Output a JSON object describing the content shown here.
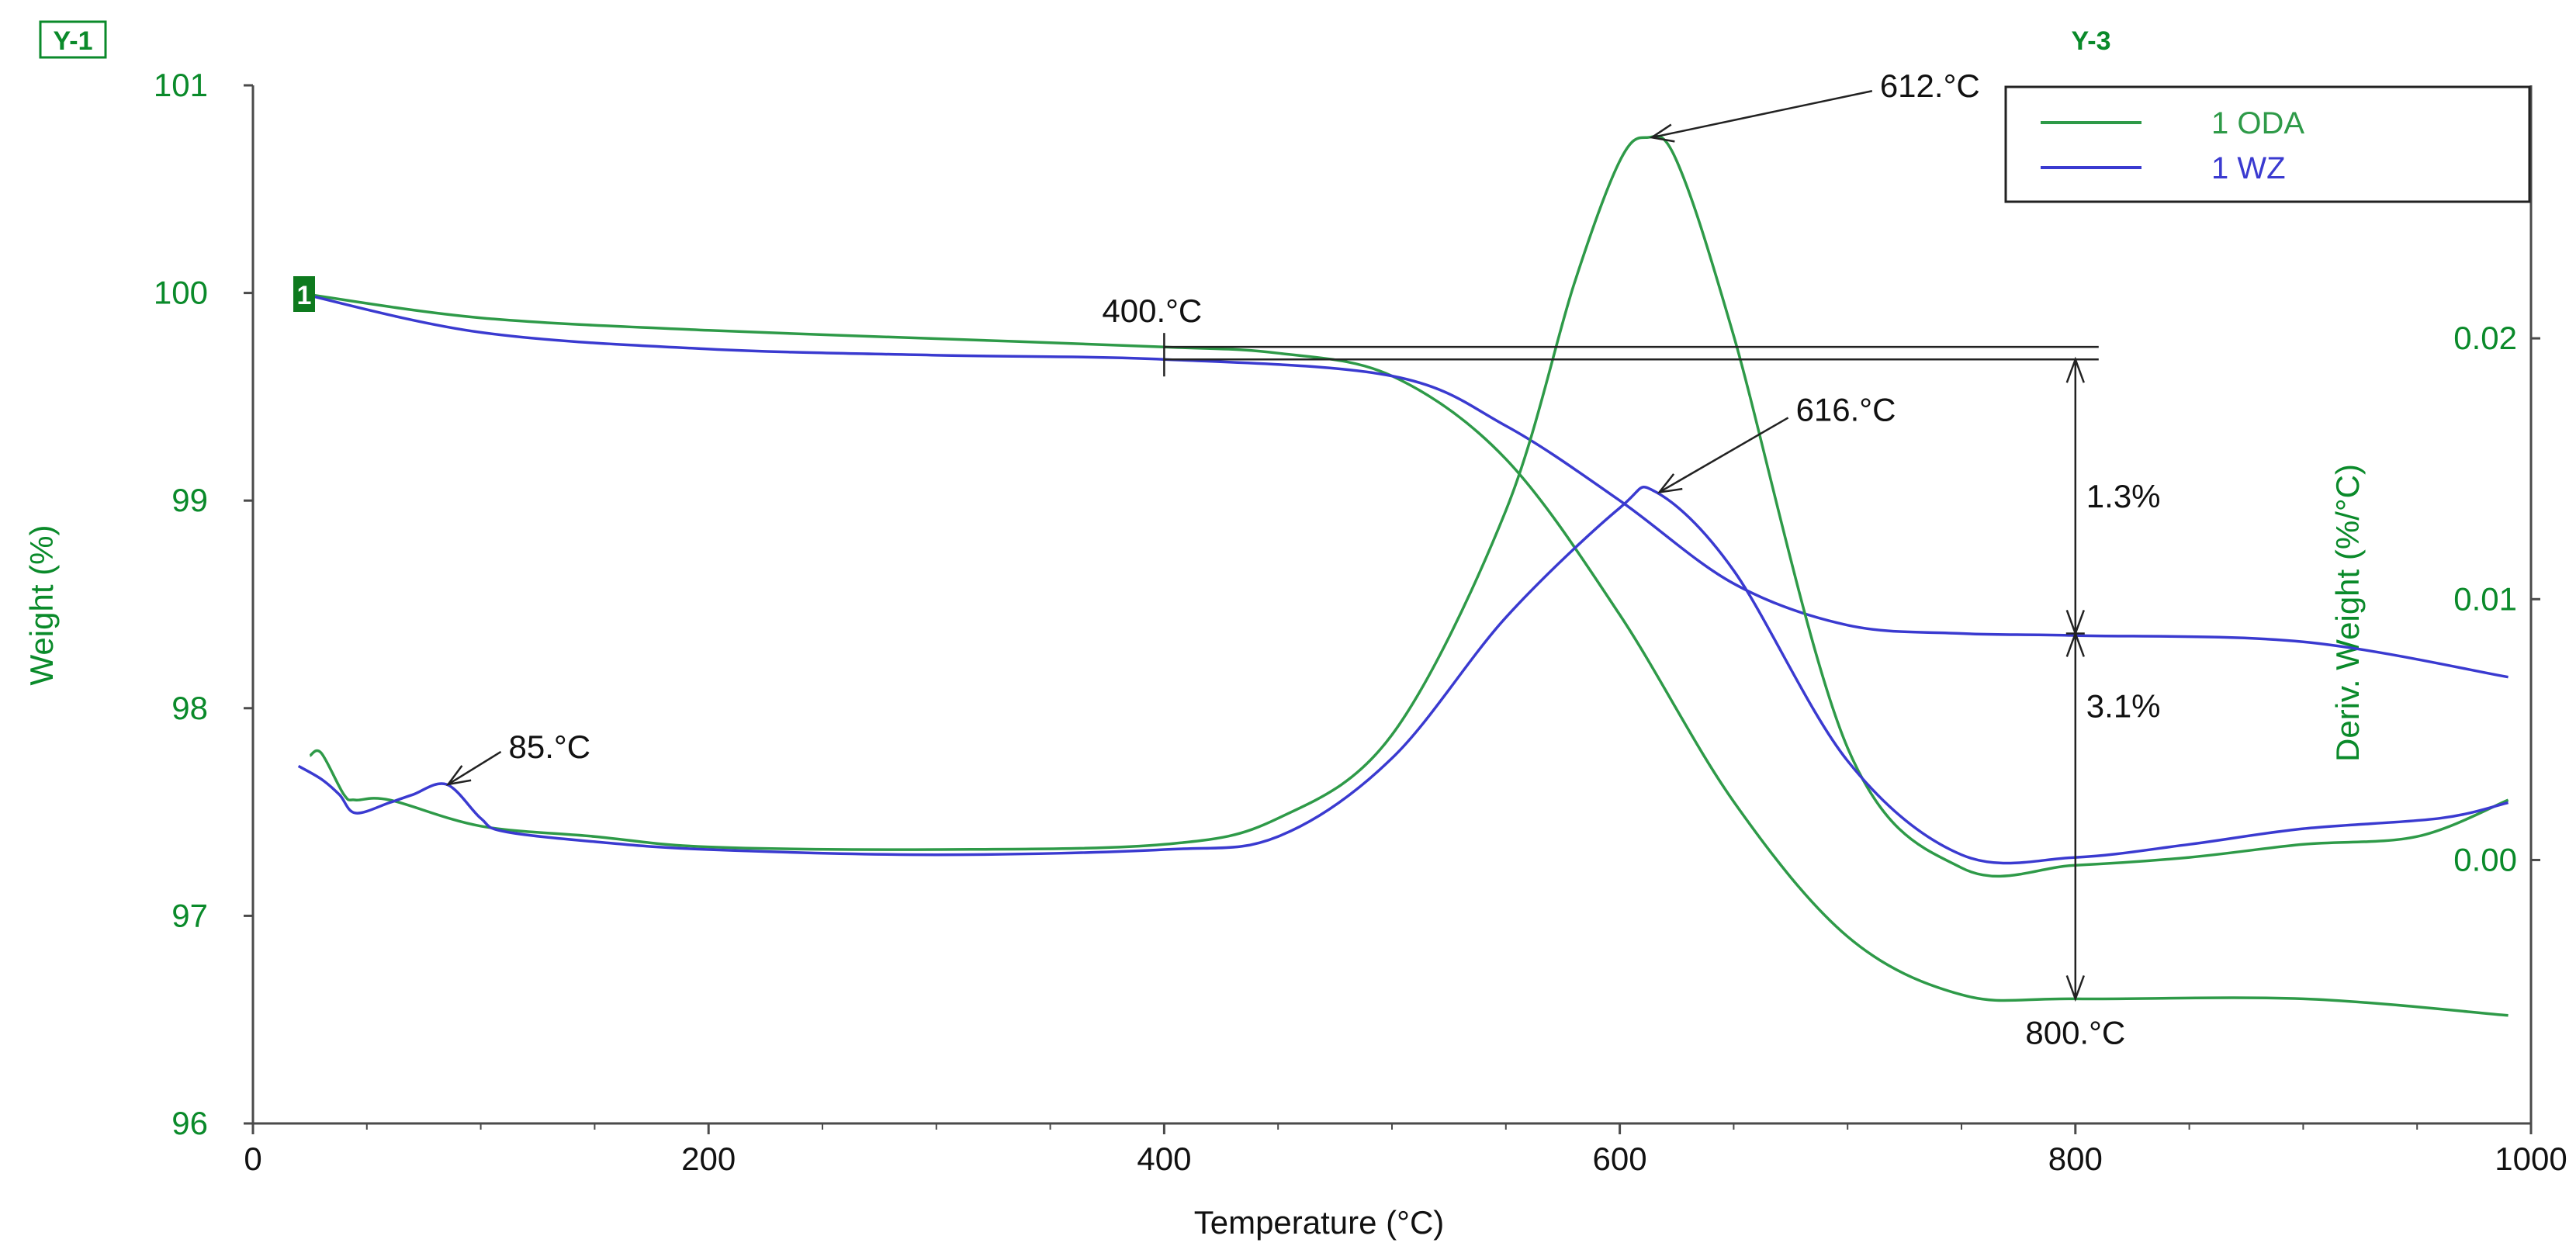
{
  "chart_data": {
    "type": "line",
    "title": "",
    "corner_left": "Y-1",
    "corner_right": "Y-3",
    "xlabel": "Temperature (°C)",
    "ylabel_left": "Weight (%)",
    "ylabel_right": "Deriv. Weight (%/°C)",
    "xlim": [
      0,
      1000
    ],
    "ylim_left": [
      96,
      101
    ],
    "ylim_right": [
      -0.0101,
      0.0297
    ],
    "x_ticks": [
      "0",
      "200",
      "400",
      "600",
      "800",
      "1000"
    ],
    "x_tick_values": [
      0,
      200,
      400,
      600,
      800,
      1000
    ],
    "y_left_ticks": [
      "96",
      "97",
      "98",
      "99",
      "100",
      "101"
    ],
    "y_left_tick_values": [
      96,
      97,
      98,
      99,
      100,
      101
    ],
    "y_right_ticks": [
      "0.00",
      "0.01",
      "0.02"
    ],
    "y_right_tick_values": [
      0.0,
      0.01,
      0.02
    ],
    "grid": false,
    "legend_position": "top-right",
    "colors": {
      "axis": "#0a8a2a",
      "oda": "#2e9a48",
      "wz": "#3a3ad0",
      "annotation": "#222222"
    },
    "series": [
      {
        "name": "1 ODA",
        "kind": "weight",
        "axis": "left",
        "color": "#2e9a48",
        "x": [
          20,
          100,
          200,
          300,
          400,
          450,
          500,
          550,
          600,
          650,
          700,
          750,
          800,
          900,
          990
        ],
        "y": [
          100.0,
          99.88,
          99.82,
          99.78,
          99.74,
          99.71,
          99.6,
          99.2,
          98.45,
          97.55,
          96.9,
          96.62,
          96.6,
          96.6,
          96.52
        ]
      },
      {
        "name": "1 WZ",
        "kind": "weight",
        "axis": "left",
        "color": "#3a3ad0",
        "x": [
          20,
          100,
          200,
          300,
          400,
          500,
          550,
          600,
          650,
          700,
          750,
          800,
          900,
          990
        ],
        "y": [
          100.0,
          99.81,
          99.73,
          99.7,
          99.68,
          99.6,
          99.36,
          99.0,
          98.6,
          98.4,
          98.36,
          98.35,
          98.32,
          98.15
        ]
      },
      {
        "name": "1 ODA",
        "kind": "derivative",
        "axis": "right",
        "color": "#2e9a48",
        "x": [
          25,
          30,
          40,
          45,
          60,
          100,
          150,
          200,
          300,
          400,
          450,
          500,
          550,
          580,
          600,
          612,
          625,
          650,
          700,
          750,
          800,
          850,
          900,
          950,
          990
        ],
        "y": [
          0.004,
          0.0041,
          0.0025,
          0.0023,
          0.0023,
          0.0013,
          0.0009,
          0.0005,
          0.0004,
          0.0006,
          0.0016,
          0.0048,
          0.0134,
          0.0221,
          0.0268,
          0.0277,
          0.0268,
          0.0201,
          0.0043,
          -0.0003,
          -0.0002,
          0.0001,
          0.0006,
          0.0009,
          0.0023
        ]
      },
      {
        "name": "1 WZ",
        "kind": "derivative",
        "axis": "right",
        "color": "#3a3ad0",
        "x": [
          20,
          30,
          38,
          45,
          60,
          70,
          85,
          100,
          110,
          150,
          200,
          300,
          400,
          450,
          500,
          550,
          600,
          616,
          650,
          700,
          750,
          800,
          850,
          900,
          960,
          990
        ],
        "y": [
          0.0036,
          0.0031,
          0.0025,
          0.0018,
          0.0022,
          0.0025,
          0.0029,
          0.0016,
          0.0011,
          0.0007,
          0.0004,
          0.0002,
          0.0004,
          0.0009,
          0.0039,
          0.0093,
          0.0135,
          0.0141,
          0.0111,
          0.0038,
          0.0002,
          0.0001,
          0.0006,
          0.0012,
          0.0016,
          0.0022
        ]
      }
    ],
    "legend": [
      "1 ODA",
      "1 WZ"
    ],
    "annotations": [
      {
        "label": "612.°C",
        "x": 612,
        "value": 0.0277,
        "axis": "right",
        "series": "1 ODA"
      },
      {
        "label": "616.°C",
        "x": 616,
        "value": 0.0141,
        "axis": "right",
        "series": "1 WZ"
      },
      {
        "label": "85.°C",
        "x": 85,
        "value": 0.0029,
        "axis": "right",
        "series": "1 WZ"
      },
      {
        "label": "400.°C",
        "x": 400,
        "kind": "onset marker"
      },
      {
        "label": "800.°C",
        "x": 800,
        "kind": "end marker"
      },
      {
        "label": "1.3%",
        "kind": "weight loss",
        "series": "1 WZ",
        "from": 99.68,
        "to": 98.36
      },
      {
        "label": "3.1%",
        "kind": "weight loss",
        "series": "1 ODA",
        "from": 99.74,
        "to": 96.6
      }
    ],
    "sample_marker": "1"
  }
}
